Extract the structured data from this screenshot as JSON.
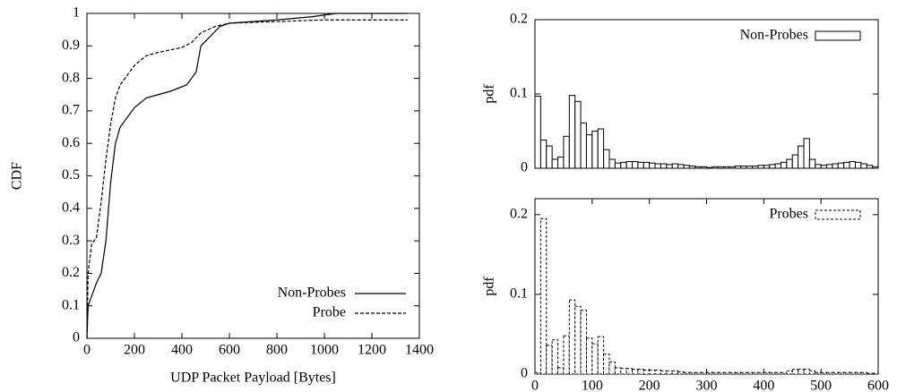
{
  "chart_data": [
    {
      "type": "line",
      "xlabel": "UDP Packet Payload [Bytes]",
      "ylabel": "CDF",
      "xlim": [
        0,
        1400
      ],
      "ylim": [
        0,
        1
      ],
      "xticks": [
        0,
        200,
        400,
        600,
        800,
        1000,
        1200,
        1400
      ],
      "yticks": [
        0,
        0.1,
        0.2,
        0.3,
        0.4,
        0.5,
        0.6,
        0.7,
        0.8,
        0.9,
        1
      ],
      "legend": "lower right",
      "series": [
        {
          "name": "Non-Probes",
          "color": "#000000",
          "dash": false,
          "x": [
            0,
            5,
            20,
            40,
            60,
            80,
            100,
            120,
            140,
            200,
            250,
            300,
            350,
            420,
            460,
            480,
            520,
            560,
            600,
            800,
            950,
            1050,
            1350
          ],
          "values": [
            0,
            0.1,
            0.13,
            0.17,
            0.2,
            0.3,
            0.48,
            0.6,
            0.65,
            0.71,
            0.74,
            0.75,
            0.76,
            0.78,
            0.82,
            0.9,
            0.93,
            0.96,
            0.97,
            0.98,
            0.99,
            1,
            1
          ]
        },
        {
          "name": "Probe",
          "color": "#000000",
          "dash": true,
          "x": [
            0,
            5,
            20,
            40,
            60,
            80,
            100,
            120,
            140,
            200,
            250,
            300,
            400,
            440,
            480,
            540,
            600,
            800,
            1000,
            1350
          ],
          "values": [
            0,
            0.2,
            0.29,
            0.31,
            0.42,
            0.55,
            0.66,
            0.74,
            0.78,
            0.84,
            0.87,
            0.88,
            0.895,
            0.91,
            0.94,
            0.96,
            0.97,
            0.975,
            0.98,
            0.98
          ]
        }
      ]
    },
    {
      "type": "histogram",
      "ylabel": "pdf",
      "xlim": [
        0,
        600
      ],
      "ylim": [
        0,
        0.2
      ],
      "yticks": [
        0,
        0.1,
        0.2
      ],
      "legend": "upper right",
      "series": [
        {
          "name": "Non-Probes",
          "color": "#000000",
          "dash": false,
          "bins": [
            0,
            10,
            20,
            30,
            40,
            50,
            60,
            70,
            80,
            90,
            100,
            110,
            120,
            130,
            140,
            150,
            160,
            170,
            180,
            190,
            200,
            210,
            220,
            230,
            240,
            250,
            260,
            270,
            280,
            290,
            300,
            310,
            320,
            330,
            340,
            350,
            360,
            370,
            380,
            390,
            400,
            410,
            420,
            430,
            440,
            450,
            460,
            470,
            480,
            490,
            500,
            510,
            520,
            530,
            540,
            550,
            560,
            570,
            580,
            590,
            600
          ],
          "values": [
            0.097,
            0.038,
            0.03,
            0.012,
            0.015,
            0.043,
            0.098,
            0.09,
            0.061,
            0.045,
            0.05,
            0.053,
            0.025,
            0.012,
            0.007,
            0.008,
            0.009,
            0.009,
            0.008,
            0.008,
            0.007,
            0.006,
            0.006,
            0.005,
            0.006,
            0.005,
            0.004,
            0.003,
            0.002,
            0.002,
            0.001,
            0.002,
            0.002,
            0.002,
            0.002,
            0.003,
            0.003,
            0.003,
            0.003,
            0.004,
            0.004,
            0.005,
            0.006,
            0.008,
            0.012,
            0.018,
            0.03,
            0.04,
            0.012,
            0.005,
            0.004,
            0.005,
            0.006,
            0.007,
            0.008,
            0.009,
            0.008,
            0.006,
            0.004,
            0.002
          ]
        }
      ]
    },
    {
      "type": "histogram",
      "ylabel": "pdf",
      "xlim": [
        0,
        600
      ],
      "ylim": [
        0,
        0.22
      ],
      "yticks": [
        0,
        0.1,
        0.2
      ],
      "xticks": [
        0,
        100,
        200,
        300,
        400,
        500,
        600
      ],
      "legend": "upper right",
      "series": [
        {
          "name": "Probes",
          "color": "#000000",
          "dash": true,
          "bins": [
            0,
            10,
            20,
            30,
            40,
            50,
            60,
            70,
            80,
            90,
            100,
            110,
            120,
            130,
            140,
            150,
            160,
            170,
            180,
            190,
            200,
            210,
            220,
            230,
            240,
            250,
            260,
            270,
            280,
            290,
            300,
            310,
            320,
            330,
            340,
            350,
            360,
            370,
            380,
            390,
            400,
            410,
            420,
            430,
            440,
            450,
            460,
            470,
            480,
            490,
            500,
            510,
            520,
            530,
            540,
            550,
            560,
            570,
            580,
            590,
            600
          ],
          "values": [
            0.002,
            0.195,
            0.036,
            0.043,
            0.008,
            0.048,
            0.093,
            0.085,
            0.08,
            0.045,
            0.038,
            0.047,
            0.025,
            0.015,
            0.008,
            0.007,
            0.007,
            0.006,
            0.006,
            0.005,
            0.005,
            0.005,
            0.004,
            0.004,
            0.004,
            0.003,
            0.002,
            0.002,
            0.002,
            0.002,
            0.002,
            0.002,
            0.002,
            0.002,
            0.002,
            0.002,
            0.002,
            0.002,
            0.002,
            0.002,
            0.002,
            0.002,
            0.002,
            0.002,
            0.004,
            0.006,
            0.006,
            0.006,
            0.004,
            0.002,
            0.002,
            0.002,
            0.002,
            0.002,
            0.002,
            0.002,
            0.002,
            0.002,
            0.001,
            0.001
          ]
        }
      ]
    }
  ]
}
